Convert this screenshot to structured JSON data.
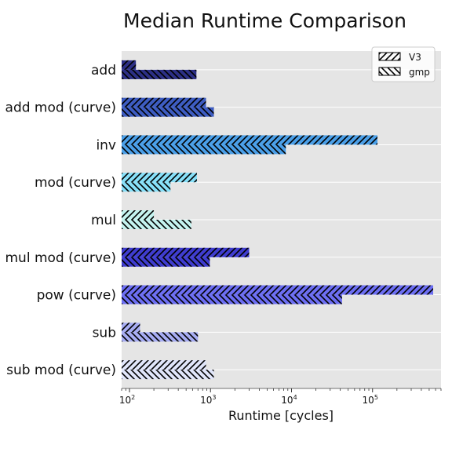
{
  "chart_data": {
    "type": "bar",
    "orientation": "horizontal",
    "title": "Median Runtime Comparison",
    "xlabel": "Runtime [cycles]",
    "ylabel": "",
    "xscale": "log",
    "xlim": [
      80,
      700000
    ],
    "xticks": [
      {
        "base": "10",
        "exp": "2"
      },
      {
        "base": "10",
        "exp": "3"
      },
      {
        "base": "10",
        "exp": "4"
      },
      {
        "base": "10",
        "exp": "5"
      }
    ],
    "grid": true,
    "legend_position": "top-right",
    "categories": [
      "add",
      "add mod (curve)",
      "inv",
      "mod (curve)",
      "mul",
      "mul mod (curve)",
      "pow (curve)",
      "sub",
      "sub mod (curve)"
    ],
    "category_colors": [
      "#2c2f85",
      "#3d5cc1",
      "#4a9fe8",
      "#86dff8",
      "#c4f3ef",
      "#3f3ccf",
      "#6c6ef2",
      "#a6acf2",
      "#e0e5fa"
    ],
    "series": [
      {
        "name": "V3",
        "hatch": "forward",
        "values": [
          120,
          880,
          115000,
          680,
          200,
          3000,
          560000,
          135,
          880
        ]
      },
      {
        "name": "gmp",
        "hatch": "backward",
        "values": [
          670,
          1100,
          8500,
          320,
          580,
          980,
          42000,
          700,
          1100
        ]
      }
    ]
  }
}
